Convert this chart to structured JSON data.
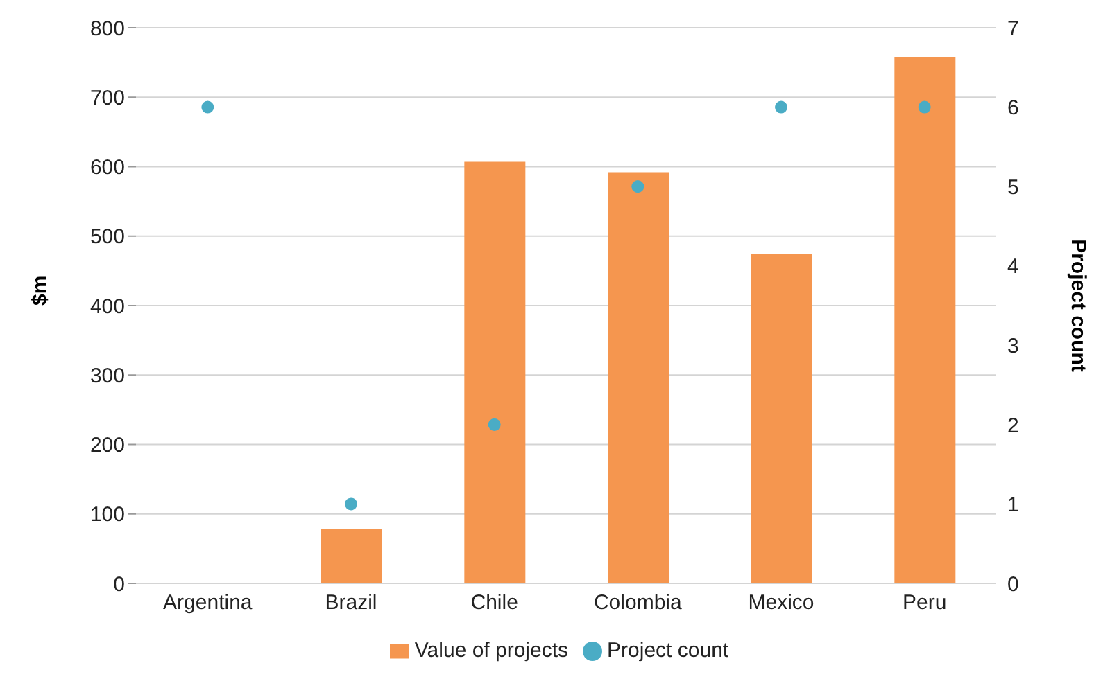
{
  "chart_data": {
    "type": "bar",
    "categories": [
      "Argentina",
      "Brazil",
      "Chile",
      "Colombia",
      "Mexico",
      "Peru"
    ],
    "series": [
      {
        "name": "Value of projects",
        "color": "#f5964f",
        "values": [
          null,
          78,
          607,
          592,
          474,
          758
        ]
      },
      {
        "name": "Project count",
        "type": "scatter",
        "axis": "y2",
        "color": "#4aacc5",
        "values": [
          6,
          1,
          2,
          5,
          6,
          6
        ]
      }
    ],
    "ylabel": "$m",
    "y2label": "Project count",
    "ylim": [
      0,
      800
    ],
    "yticks": [
      0,
      100,
      200,
      300,
      400,
      500,
      600,
      700,
      800
    ],
    "y2lim": [
      0,
      7
    ],
    "y2ticks": [
      0,
      1,
      2,
      3,
      4,
      5,
      6,
      7
    ],
    "grid": "y",
    "legend": "bottom",
    "marker": "circle"
  }
}
